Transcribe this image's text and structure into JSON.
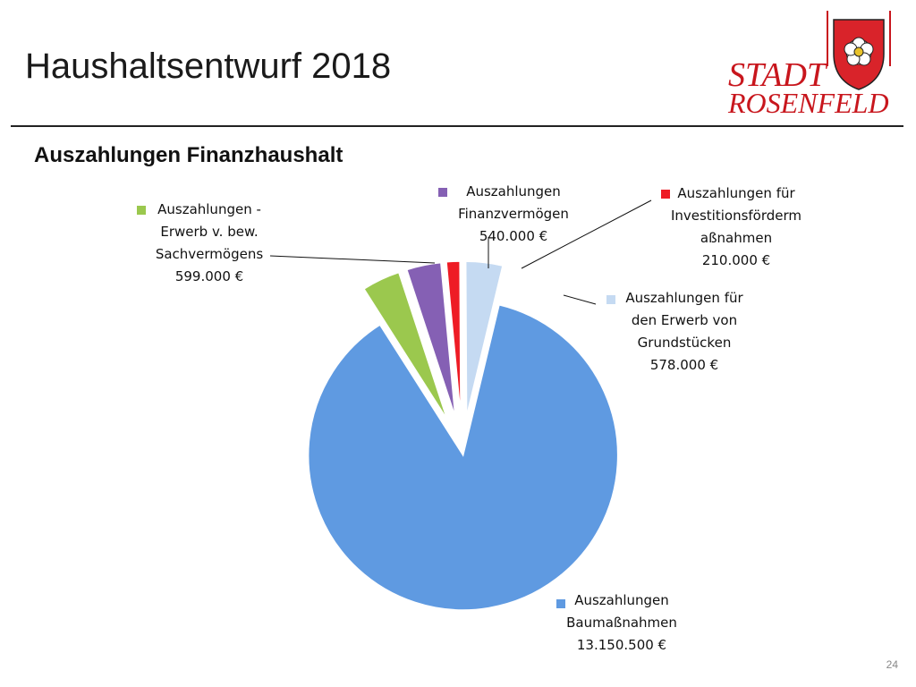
{
  "slide": {
    "title": "Haushaltsentwurf 2018",
    "page_number": "24"
  },
  "logo": {
    "line1": "STADT",
    "line2": "ROSENFELD"
  },
  "chart_data": {
    "type": "pie",
    "title": "Auszahlungen Finanzhaushalt",
    "exploded": true,
    "series": [
      {
        "label_lines": [
          "Auszahlungen",
          "Baumaßnahmen",
          "13.150.500 €"
        ],
        "value": 13150500,
        "color": "#5f9ae1"
      },
      {
        "label_lines": [
          "Auszahlungen -",
          "Erwerb v. bew.",
          "Sachvermögens",
          "599.000 €"
        ],
        "value": 599000,
        "color": "#9bc84e"
      },
      {
        "label_lines": [
          "Auszahlungen",
          "Finanzvermögen",
          "540.000 €"
        ],
        "value": 540000,
        "color": "#8560b4"
      },
      {
        "label_lines": [
          "Auszahlungen für",
          "Investitionsförderm",
          "aßnahmen",
          "210.000 €"
        ],
        "value": 210000,
        "color": "#ee1c25"
      },
      {
        "label_lines": [
          "Auszahlungen für",
          "den Erwerb von",
          "Grundstücken",
          "578.000 €"
        ],
        "value": 578000,
        "color": "#c5daf2"
      }
    ]
  }
}
